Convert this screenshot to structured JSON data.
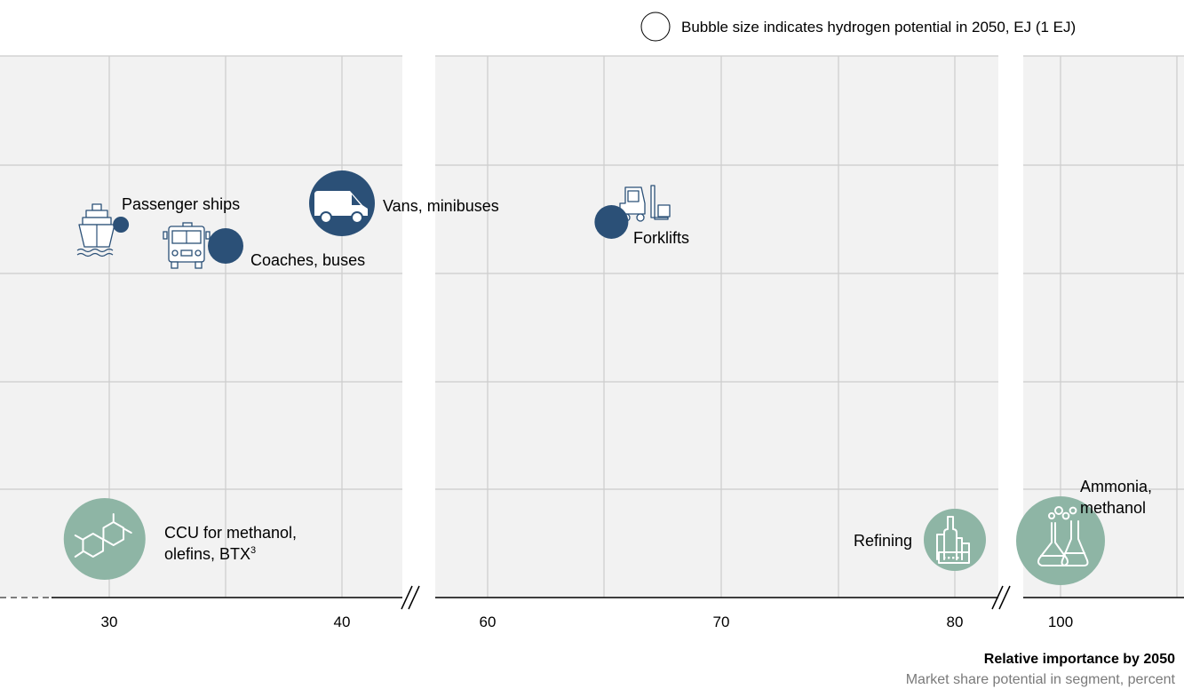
{
  "legend": {
    "text": "Bubble size indicates hydrogen potential in 2050, EJ (1 EJ)"
  },
  "chart_data": {
    "type": "scatter",
    "title": "",
    "xlabel": "Relative importance by 2050",
    "xlabel_sub": "Market share potential in segment, percent",
    "ylabel": "",
    "x_ticks": [
      "30",
      "40",
      "60",
      "70",
      "80",
      "100"
    ],
    "axis_breaks": [
      "40–60",
      "80–100"
    ],
    "grid": true,
    "colors": {
      "mobility": "#2b5077",
      "industry": "#8eb5a5",
      "plot_bg": "#f2f2f2",
      "grid": "#cccccc"
    },
    "points": [
      {
        "label_lines": [
          "Passenger ships"
        ],
        "x": 30.5,
        "category": "mobility",
        "icon": "ship-icon"
      },
      {
        "label_lines": [
          "Coaches, buses"
        ],
        "x": 35,
        "category": "mobility",
        "icon": "bus-icon"
      },
      {
        "label_lines": [
          "Vans, minibuses"
        ],
        "x": 40,
        "category": "mobility",
        "icon": "van-icon"
      },
      {
        "label_lines": [
          "Forklifts"
        ],
        "x": 65.3,
        "category": "mobility",
        "icon": "forklift-icon"
      },
      {
        "label_lines": [
          "CCU for methanol,",
          "olefins, BTX"
        ],
        "superscript": "3",
        "x": 29.8,
        "category": "industry",
        "icon": "molecule-icon"
      },
      {
        "label_lines": [
          "Refining"
        ],
        "x": 80,
        "category": "industry",
        "icon": "refinery-icon"
      },
      {
        "label_lines": [
          "Ammonia,",
          "methanol"
        ],
        "x": 100,
        "category": "industry",
        "icon": "flask-icon"
      }
    ]
  }
}
